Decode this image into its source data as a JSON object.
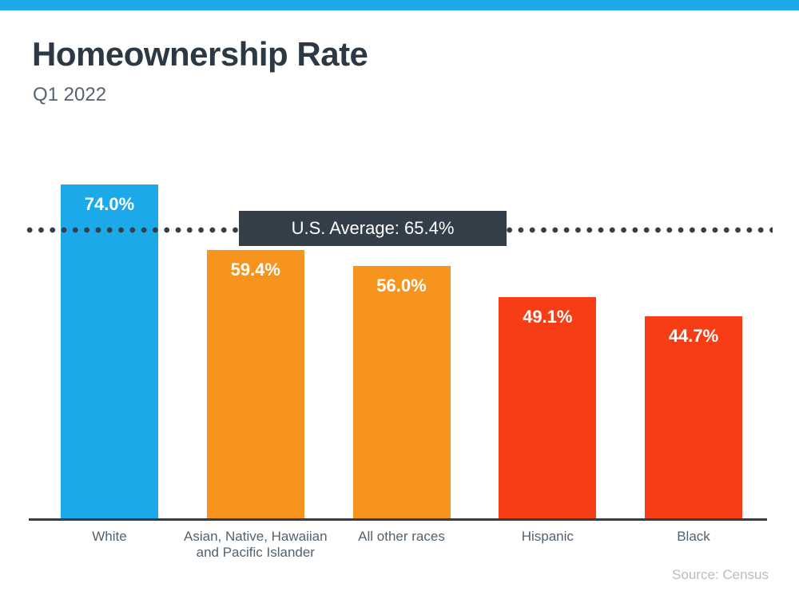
{
  "page": {
    "title": "Homeownership Rate",
    "subtitle": "Q1 2022",
    "source": "Source: Census"
  },
  "chart_data": {
    "type": "bar",
    "title": "Homeownership Rate",
    "subtitle": "Q1 2022",
    "categories": [
      "White",
      "Asian, Native, Hawaiian and Pacific Islander",
      "All other races",
      "Hispanic",
      "Black"
    ],
    "values": [
      74.0,
      59.4,
      56.0,
      49.1,
      44.7
    ],
    "value_labels": [
      "74.0%",
      "59.4%",
      "56.0%",
      "49.1%",
      "44.7%"
    ],
    "bar_colors": [
      "#1BA9E9",
      "#F7941E",
      "#F7941E",
      "#F63D15",
      "#F63D15"
    ],
    "reference_line": {
      "label": "U.S. Average: 65.4%",
      "value": 65.4,
      "style": "dotted",
      "color": "#333E48",
      "box_color": "#333E48",
      "text_color": "#FFFFFF"
    },
    "xlabel": "",
    "ylabel": "",
    "ylim": [
      0,
      80
    ],
    "y_axis_visible": false,
    "grid": false,
    "legend": false,
    "source": "Source: Census",
    "accent_bar_color": "#1BA9E9"
  },
  "theme": {
    "background": "#FFFFFF",
    "title_color": "#2C3945",
    "subtitle_color": "#57646E",
    "category_label_color": "#53626F",
    "source_color": "#B3BEC6",
    "bar_value_text_color": "#FFFFFF"
  }
}
